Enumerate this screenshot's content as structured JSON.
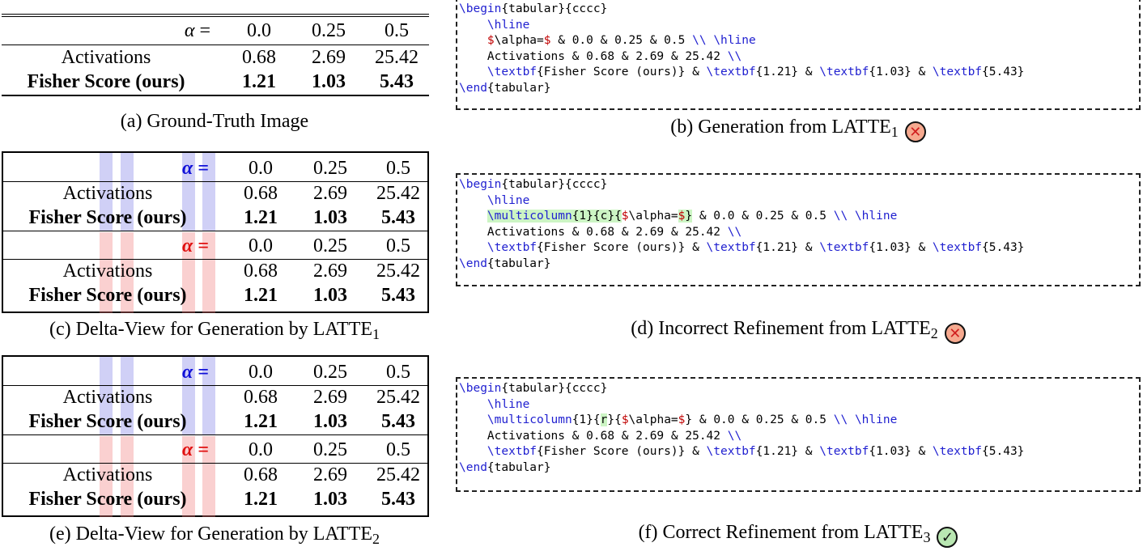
{
  "table_headers": {
    "alpha_label": "α =",
    "cols": [
      "0.0",
      "0.25",
      "0.5"
    ]
  },
  "rows": {
    "activations": {
      "label": "Activations",
      "values": [
        "0.68",
        "2.69",
        "25.42"
      ]
    },
    "fisher": {
      "label": "Fisher Score (ours)",
      "values": [
        "1.21",
        "1.03",
        "5.43"
      ]
    }
  },
  "captions": {
    "a": "(a) Ground-Truth Image",
    "b_main": "(b) Generation from LATTE",
    "b_sub": "1",
    "c_main": "(c) Delta-View for Generation by LATTE",
    "c_sub": "1",
    "d_main": "(d) Incorrect Refinement from LATTE",
    "d_sub": "2",
    "e_main": "(e) Delta-View for Generation by LATTE",
    "e_sub": "2",
    "f_main": "(f) Correct Refinement from LATTE",
    "f_sub": "3"
  },
  "code": {
    "begin_kw": "\\begin",
    "begin_arg": "{tabular}{cccc}",
    "hline": "\\hline",
    "activations_line": "Activations & 0.68 & 2.69 & 25.42 ",
    "newline": "\\\\",
    "textbf": "\\textbf",
    "fisher_arg": "{Fisher Score (ours)} & ",
    "v1": "{1.21} & ",
    "v2": "{1.03} & ",
    "v3": "{5.43}",
    "end_kw": "\\end",
    "end_arg": "{tabular}",
    "alpha_dollar": "$",
    "alpha_cmd": "\\alpha=",
    "header_rest": " & 0.0 & 0.25 & 0.5 ",
    "multicolumn": "\\multicolumn",
    "mc_args_c": "{1}{c}{",
    "mc_args_r_pre": "{1}{",
    "mc_args_r_mid": "r",
    "mc_args_r_post": "}{",
    "close_brace": "}"
  },
  "badges": {
    "wrong_icon": "x-circle-icon",
    "right_icon": "check-circle-icon",
    "wrong_glyph": "✕",
    "right_glyph": "✓"
  },
  "colors": {
    "blue_highlight": "#1010d8",
    "red_highlight": "#e01010",
    "diff_green": "#ccf5c4"
  }
}
